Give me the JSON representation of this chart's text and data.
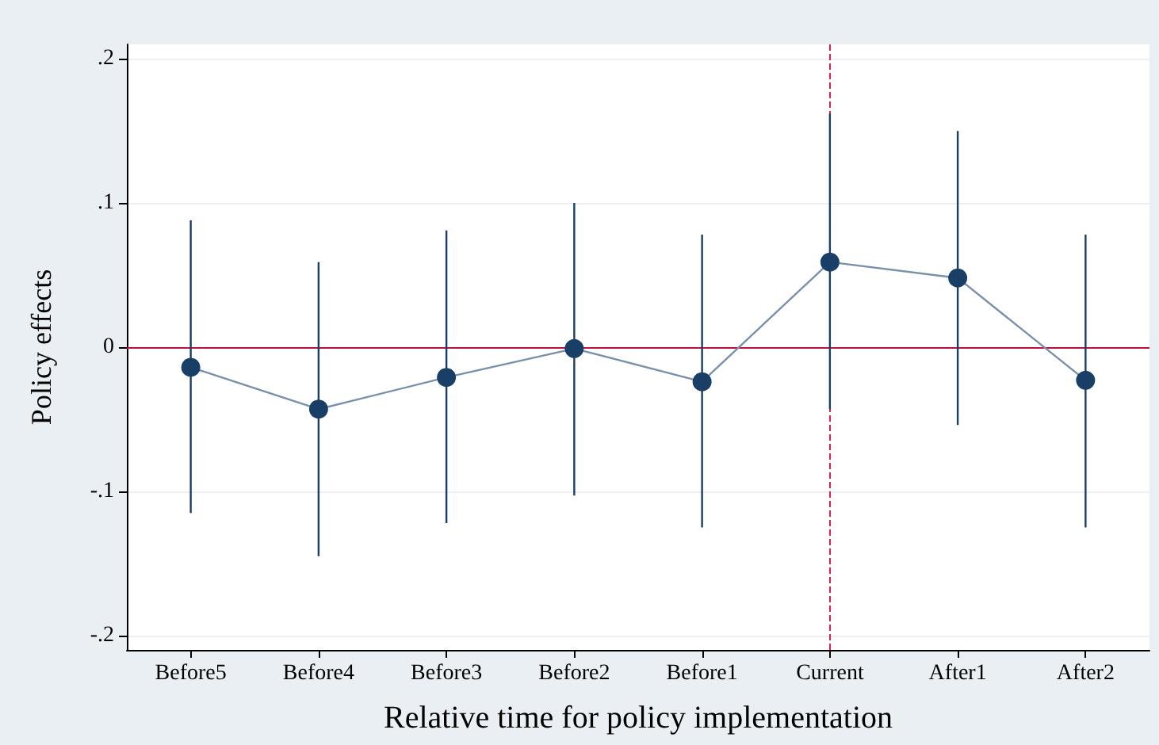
{
  "chart_data": {
    "type": "line",
    "xlabel": "Relative time for policy implementation",
    "ylabel": "Policy effects",
    "categories": [
      "Before5",
      "Before4",
      "Before3",
      "Before2",
      "Before1",
      "Current",
      "After1",
      "After2"
    ],
    "series": [
      {
        "color": "#1a3f66",
        "values": [
          -0.014,
          -0.043,
          -0.021,
          -0.001,
          -0.024,
          0.059,
          0.048,
          -0.023
        ],
        "errors": [
          [
            -0.115,
            0.088
          ],
          [
            -0.145,
            0.059
          ],
          [
            -0.122,
            0.081
          ],
          [
            -0.103,
            0.1
          ],
          [
            -0.125,
            0.078
          ],
          [
            -0.043,
            0.162
          ],
          [
            -0.054,
            0.15
          ],
          [
            -0.125,
            0.078
          ]
        ]
      }
    ],
    "ylim": [
      -0.21,
      0.21
    ],
    "yticks": [
      {
        "value": -0.2,
        "label": "-.2"
      },
      {
        "value": -0.1,
        "label": "-.1"
      },
      0,
      {
        "value": 0.1,
        "label": ".1"
      },
      {
        "value": 0.2,
        "label": ".2"
      }
    ],
    "ref_lines": [
      {
        "axis": "y",
        "value": 0,
        "color": "#c0103a",
        "line_style": "solid"
      },
      {
        "axis": "x",
        "value": "Current",
        "color": "#e0204a",
        "line_style": "dashed"
      }
    ],
    "grid": "y",
    "marker": "circle",
    "line_style": "solid"
  }
}
